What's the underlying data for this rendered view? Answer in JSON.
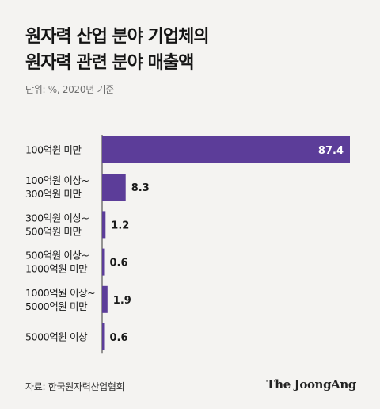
{
  "title_line1": "원자력 산업 분야 기업체의",
  "title_line2": "원자력 관련 분야 매출액",
  "unit_note": "단위: %, 2020년 기준",
  "source": "자료: 한국원자력산업협회",
  "publisher": "The JoongAng",
  "colors": {
    "bar": "#5c3d99",
    "background": "#f4f3f1",
    "axis": "#333333"
  },
  "chart_data": {
    "type": "bar",
    "orientation": "horizontal",
    "title": "원자력 산업 분야 기업체의 원자력 관련 분야 매출액",
    "unit": "%",
    "categories": [
      [
        "100억원 미만"
      ],
      [
        "100억원 이상~",
        "300억원 미만"
      ],
      [
        "300억원 이상~",
        "500억원 미만"
      ],
      [
        "500억원 이상~",
        "1000억원 미만"
      ],
      [
        "1000억원 이상~",
        "5000억원 미만"
      ],
      [
        "5000억원 이상"
      ]
    ],
    "values": [
      87.4,
      8.3,
      1.2,
      0.6,
      1.9,
      0.6
    ],
    "value_labels": [
      "87.4",
      "8.3",
      "1.2",
      "0.6",
      "1.9",
      "0.6"
    ],
    "xlim": [
      0,
      87.4
    ],
    "grid": false,
    "legend": false
  }
}
